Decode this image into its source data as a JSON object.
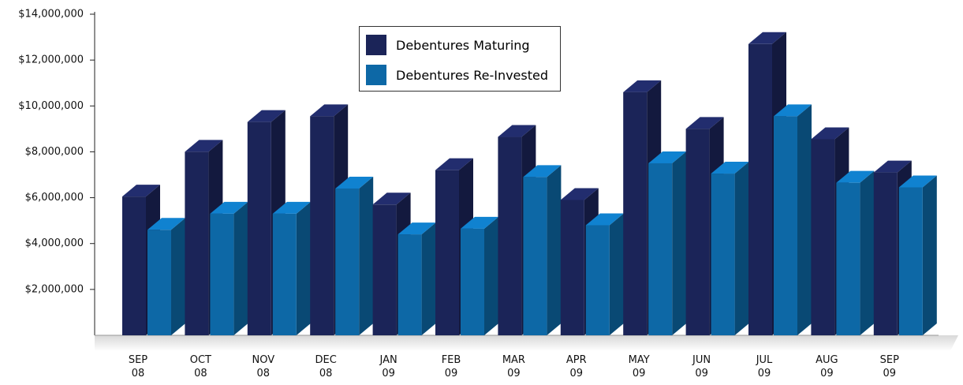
{
  "chart_data": {
    "type": "bar3d",
    "categories": [
      "SEP 08",
      "OCT 08",
      "NOV 08",
      "DEC 08",
      "JAN 09",
      "FEB 09",
      "MAR 09",
      "APR 09",
      "MAY 09",
      "JUN 09",
      "JUL 09",
      "AUG 09",
      "SEP 09"
    ],
    "series": [
      {
        "name": "Debentures Maturing",
        "color": "#1b2458",
        "values": [
          6050000,
          8000000,
          9300000,
          9550000,
          5700000,
          7200000,
          8650000,
          5900000,
          10600000,
          9000000,
          12700000,
          8550000,
          7100000
        ]
      },
      {
        "name": "Debentures Re-Invested",
        "color": "#0d68a6",
        "values": [
          4600000,
          5300000,
          5300000,
          6400000,
          4400000,
          4650000,
          6900000,
          4800000,
          7500000,
          7050000,
          9550000,
          6650000,
          6450000
        ]
      }
    ],
    "ylim": [
      0,
      14000000
    ],
    "yticks": [
      {
        "value": 2000000,
        "label": "$2,000,000"
      },
      {
        "value": 4000000,
        "label": "$4,000,000"
      },
      {
        "value": 6000000,
        "label": "$6,000,000"
      },
      {
        "value": 8000000,
        "label": "$8,000,000"
      },
      {
        "value": 10000000,
        "label": "$10,000,000"
      },
      {
        "value": 12000000,
        "label": "$12,000,000"
      },
      {
        "value": 14000000,
        "label": "$14,000,000"
      }
    ],
    "legend": "top-center"
  }
}
